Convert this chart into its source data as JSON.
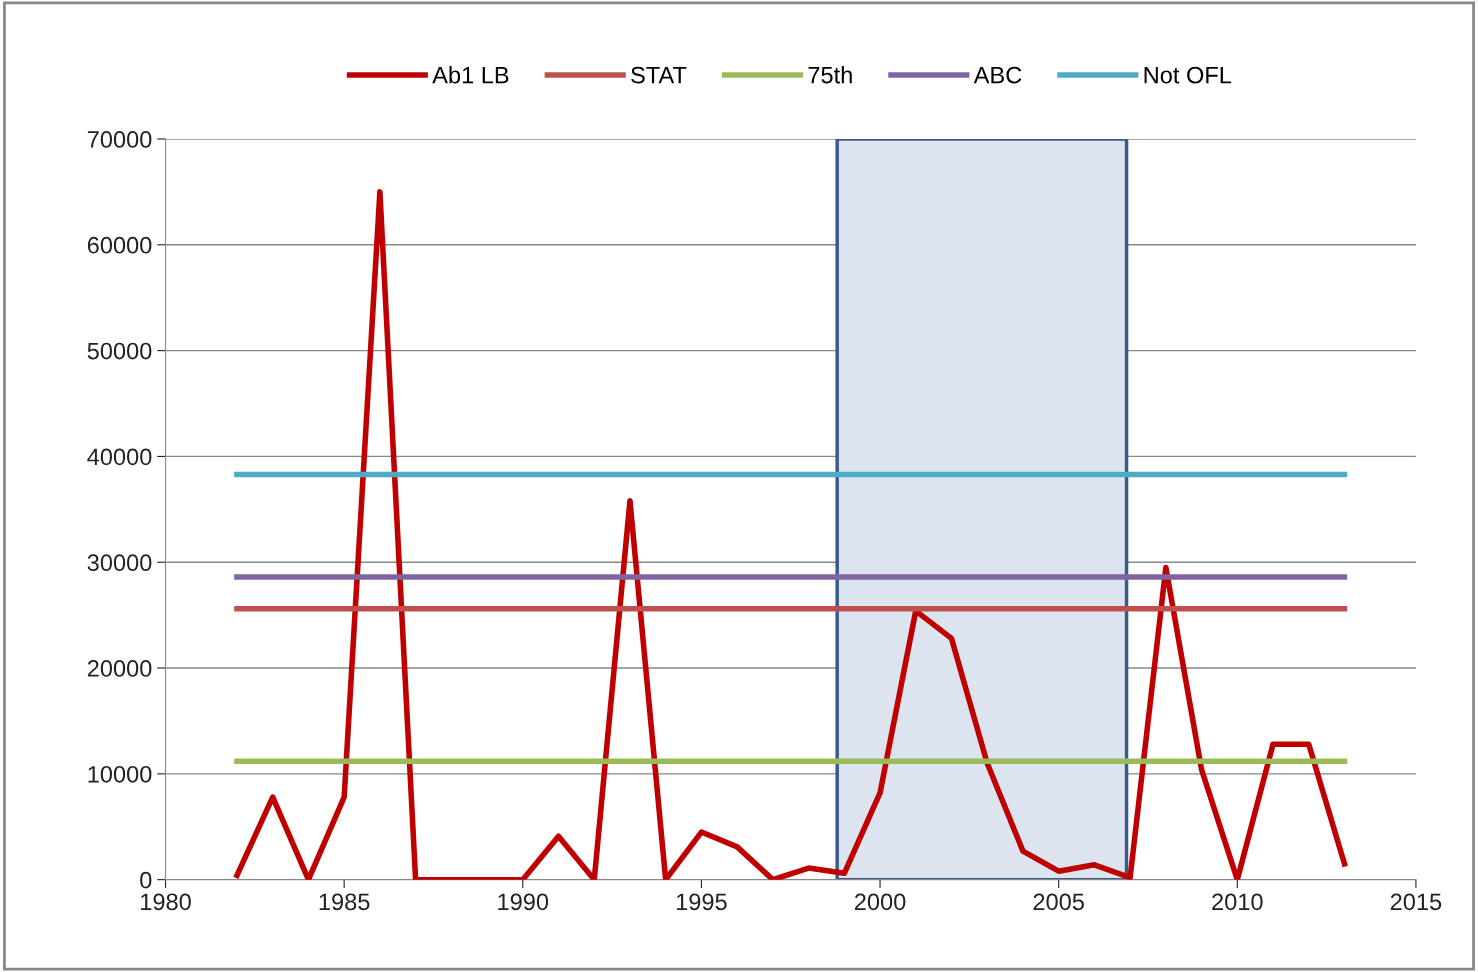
{
  "chart_data": {
    "type": "line",
    "xlim": [
      1980,
      2015
    ],
    "xticks": [
      1980,
      1985,
      1990,
      1995,
      2000,
      2005,
      2010,
      2015
    ],
    "ylim": [
      0,
      70000
    ],
    "yticks": [
      0,
      10000,
      20000,
      30000,
      40000,
      50000,
      60000,
      70000
    ],
    "grid": "y",
    "legend": "top",
    "marker": "none",
    "line_style": "solid",
    "x": [
      1982,
      1983,
      1984,
      1985,
      1986,
      1987,
      1988,
      1989,
      1990,
      1991,
      1992,
      1993,
      1994,
      1995,
      1996,
      1997,
      1998,
      1999,
      2000,
      2001,
      2002,
      2003,
      2004,
      2005,
      2006,
      2007,
      2008,
      2009,
      2010,
      2011,
      2012,
      2013
    ],
    "series": [
      {
        "name": "Ab1 LB",
        "color": "#c00000",
        "values": [
          400,
          7800,
          0,
          7800,
          65000,
          0,
          0,
          0,
          0,
          4100,
          0,
          35800,
          0,
          4500,
          3100,
          0,
          1100,
          600,
          8200,
          25400,
          22800,
          11000,
          2700,
          800,
          1400,
          200,
          29500,
          10400,
          0,
          12800,
          12800,
          1500
        ]
      },
      {
        "name": "STAT",
        "color": "#c0504d",
        "values": [
          25600,
          25600,
          25600,
          25600,
          25600,
          25600,
          25600,
          25600,
          25600,
          25600,
          25600,
          25600,
          25600,
          25600,
          25600,
          25600,
          25600,
          25600,
          25600,
          25600,
          25600,
          25600,
          25600,
          25600,
          25600,
          25600,
          25600,
          25600,
          25600,
          25600,
          25600,
          25600
        ]
      },
      {
        "name": "75th",
        "color": "#9bbb59",
        "values": [
          11200,
          11200,
          11200,
          11200,
          11200,
          11200,
          11200,
          11200,
          11200,
          11200,
          11200,
          11200,
          11200,
          11200,
          11200,
          11200,
          11200,
          11200,
          11200,
          11200,
          11200,
          11200,
          11200,
          11200,
          11200,
          11200,
          11200,
          11200,
          11200,
          11200,
          11200,
          11200
        ]
      },
      {
        "name": "ABC",
        "color": "#8064a2",
        "values": [
          28600,
          28600,
          28600,
          28600,
          28600,
          28600,
          28600,
          28600,
          28600,
          28600,
          28600,
          28600,
          28600,
          28600,
          28600,
          28600,
          28600,
          28600,
          28600,
          28600,
          28600,
          28600,
          28600,
          28600,
          28600,
          28600,
          28600,
          28600,
          28600,
          28600,
          28600,
          28600
        ]
      },
      {
        "name": "Not OFL",
        "color": "#4bacc6",
        "values": [
          38300,
          38300,
          38300,
          38300,
          38300,
          38300,
          38300,
          38300,
          38300,
          38300,
          38300,
          38300,
          38300,
          38300,
          38300,
          38300,
          38300,
          38300,
          38300,
          38300,
          38300,
          38300,
          38300,
          38300,
          38300,
          38300,
          38300,
          38300,
          38300,
          38300,
          38300,
          38300
        ]
      }
    ],
    "bands": [
      {
        "axis": "x",
        "from": 1998.8,
        "to": 2006.9,
        "color": "#dce4f0"
      }
    ]
  }
}
